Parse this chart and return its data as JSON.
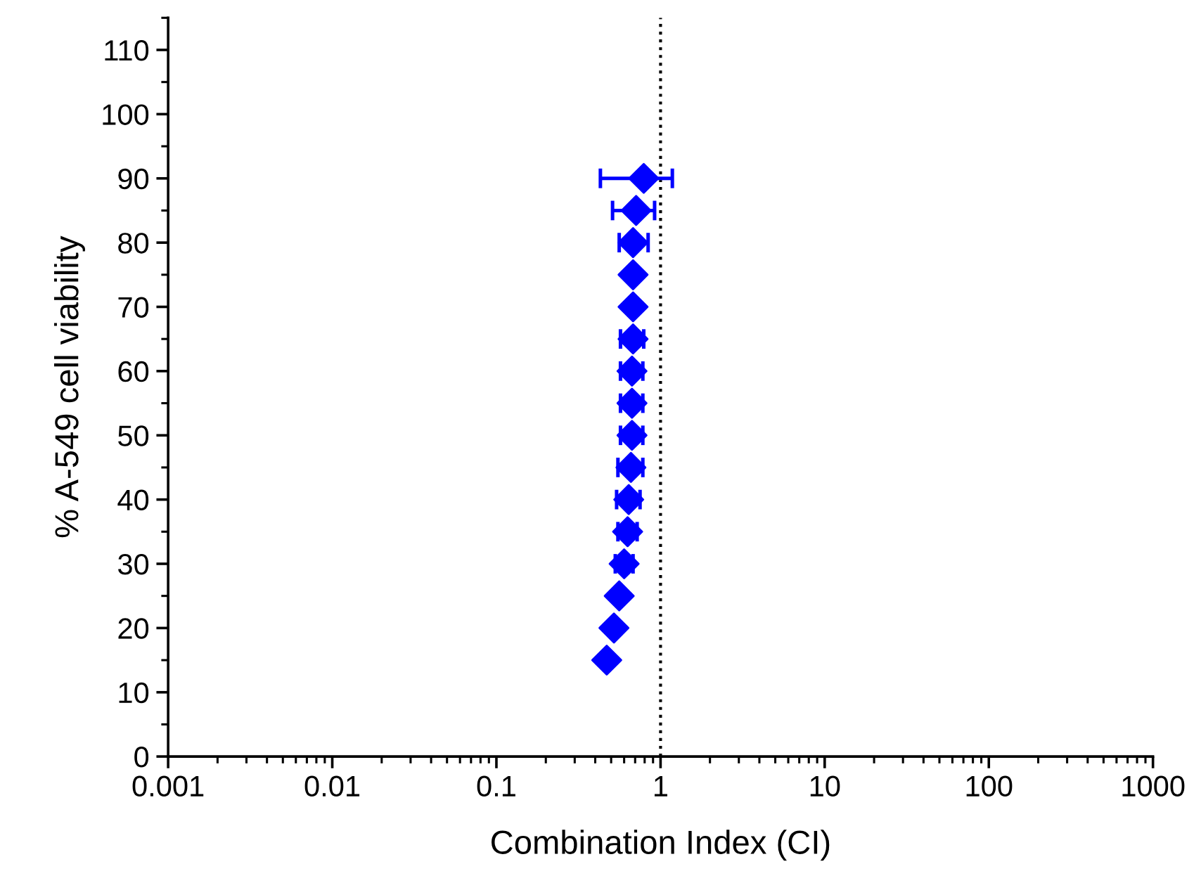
{
  "chart_data": {
    "type": "scatter",
    "xlabel": "Combination Index (CI)",
    "ylabel": "% A-549 cell viability",
    "log": "x",
    "marker": "diamond",
    "grid": false,
    "legend": false,
    "xlim": [
      0.001,
      1000
    ],
    "xticks": [
      0.001,
      0.01,
      0.1,
      1,
      10,
      100,
      1000
    ],
    "ylim": [
      0,
      115
    ],
    "yticks": [
      0,
      10,
      20,
      30,
      40,
      50,
      60,
      70,
      80,
      90,
      100,
      110
    ],
    "ref_lines": [
      {
        "axis": "x",
        "value": 1,
        "color": "#000000",
        "line_style": "dotted"
      }
    ],
    "series": [
      {
        "color": "#0000ff",
        "x": [
          0.47,
          0.52,
          0.56,
          0.6,
          0.63,
          0.64,
          0.66,
          0.67,
          0.67,
          0.67,
          0.68,
          0.68,
          0.68,
          0.68,
          0.71,
          0.79
        ],
        "values": [
          15,
          20,
          25,
          30,
          35,
          40,
          45,
          50,
          55,
          60,
          65,
          70,
          75,
          80,
          85,
          90
        ],
        "xerrors": [
          null,
          null,
          null,
          [
            0.53,
            0.68
          ],
          [
            0.55,
            0.72
          ],
          [
            0.54,
            0.75
          ],
          [
            0.55,
            0.78
          ],
          [
            0.57,
            0.78
          ],
          [
            0.57,
            0.78
          ],
          [
            0.57,
            0.78
          ],
          [
            0.57,
            0.79
          ],
          null,
          null,
          [
            0.56,
            0.84
          ],
          [
            0.51,
            0.92
          ],
          [
            0.43,
            1.18
          ]
        ]
      }
    ]
  }
}
